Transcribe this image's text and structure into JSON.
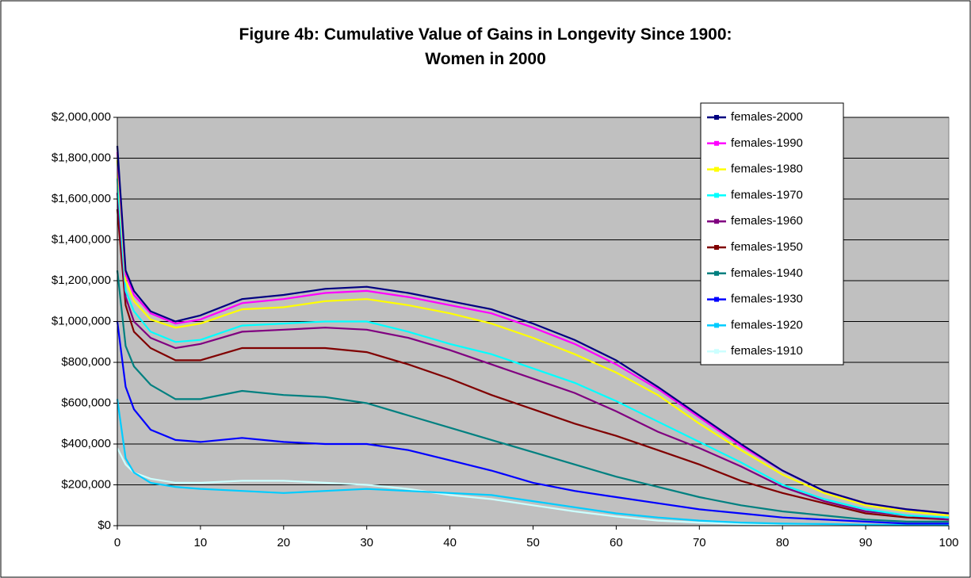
{
  "chart_data": {
    "type": "line",
    "title": "Figure 4b: Cumulative Value of Gains in Longevity Since 1900: Women in 2000",
    "x": [
      0,
      1,
      2,
      4,
      7,
      10,
      15,
      20,
      25,
      30,
      35,
      40,
      45,
      50,
      55,
      60,
      65,
      70,
      75,
      80,
      85,
      90,
      95,
      100
    ],
    "xlim": [
      0,
      100
    ],
    "xticks": [
      0,
      10,
      20,
      30,
      40,
      50,
      60,
      70,
      80,
      90,
      100
    ],
    "ylim": [
      0,
      2000000
    ],
    "yticks": [
      {
        "value": 0,
        "label": "$0"
      },
      {
        "value": 200000,
        "label": "$200,000"
      },
      {
        "value": 400000,
        "label": "$400,000"
      },
      {
        "value": 600000,
        "label": "$600,000"
      },
      {
        "value": 800000,
        "label": "$800,000"
      },
      {
        "value": 1000000,
        "label": "$1,000,000"
      },
      {
        "value": 1200000,
        "label": "$1,200,000"
      },
      {
        "value": 1400000,
        "label": "$1,400,000"
      },
      {
        "value": 1600000,
        "label": "$1,600,000"
      },
      {
        "value": 1800000,
        "label": "$1,800,000"
      },
      {
        "value": 2000000,
        "label": "$2,000,000"
      }
    ],
    "grid": true,
    "legend": "upper-right",
    "series": [
      {
        "name": "females-2000",
        "color": "#000080",
        "values": [
          1860000,
          1250000,
          1150000,
          1050000,
          1000000,
          1030000,
          1110000,
          1130000,
          1160000,
          1170000,
          1140000,
          1100000,
          1060000,
          990000,
          910000,
          810000,
          680000,
          540000,
          400000,
          270000,
          170000,
          110000,
          80000,
          60000
        ]
      },
      {
        "name": "females-1990",
        "color": "#ff00ff",
        "values": [
          1830000,
          1230000,
          1130000,
          1040000,
          990000,
          1010000,
          1090000,
          1110000,
          1140000,
          1150000,
          1120000,
          1080000,
          1040000,
          970000,
          890000,
          790000,
          670000,
          530000,
          390000,
          270000,
          170000,
          110000,
          80000,
          60000
        ]
      },
      {
        "name": "females-1980",
        "color": "#ffff00",
        "values": [
          1790000,
          1200000,
          1100000,
          1010000,
          970000,
          990000,
          1060000,
          1070000,
          1100000,
          1110000,
          1080000,
          1040000,
          990000,
          920000,
          840000,
          750000,
          640000,
          500000,
          370000,
          250000,
          160000,
          100000,
          70000,
          50000
        ]
      },
      {
        "name": "females-1970",
        "color": "#00ffff",
        "values": [
          1700000,
          1150000,
          1050000,
          950000,
          900000,
          910000,
          980000,
          990000,
          1000000,
          1000000,
          950000,
          890000,
          840000,
          770000,
          700000,
          610000,
          510000,
          410000,
          310000,
          200000,
          130000,
          80000,
          50000,
          40000
        ]
      },
      {
        "name": "females-1960",
        "color": "#800080",
        "values": [
          1630000,
          1120000,
          1000000,
          920000,
          870000,
          890000,
          950000,
          960000,
          970000,
          960000,
          920000,
          860000,
          790000,
          720000,
          650000,
          560000,
          460000,
          380000,
          290000,
          190000,
          120000,
          70000,
          50000,
          30000
        ]
      },
      {
        "name": "females-1950",
        "color": "#800000",
        "values": [
          1550000,
          1080000,
          950000,
          870000,
          810000,
          810000,
          870000,
          870000,
          870000,
          850000,
          790000,
          720000,
          640000,
          570000,
          500000,
          440000,
          370000,
          300000,
          220000,
          160000,
          110000,
          60000,
          40000,
          30000
        ]
      },
      {
        "name": "females-1940",
        "color": "#008080",
        "values": [
          1250000,
          880000,
          780000,
          690000,
          620000,
          620000,
          660000,
          640000,
          630000,
          600000,
          540000,
          480000,
          420000,
          360000,
          300000,
          240000,
          190000,
          140000,
          100000,
          70000,
          50000,
          30000,
          20000,
          20000
        ]
      },
      {
        "name": "females-1930",
        "color": "#0000ff",
        "values": [
          1000000,
          680000,
          570000,
          470000,
          420000,
          410000,
          430000,
          410000,
          400000,
          400000,
          370000,
          320000,
          270000,
          210000,
          170000,
          140000,
          110000,
          80000,
          60000,
          40000,
          30000,
          20000,
          10000,
          10000
        ]
      },
      {
        "name": "females-1920",
        "color": "#00ccff",
        "values": [
          620000,
          330000,
          260000,
          210000,
          190000,
          180000,
          170000,
          160000,
          170000,
          180000,
          170000,
          160000,
          150000,
          120000,
          90000,
          60000,
          40000,
          25000,
          15000,
          10000,
          8000,
          5000,
          3000,
          2000
        ]
      },
      {
        "name": "females-1910",
        "color": "#ccffff",
        "values": [
          380000,
          300000,
          260000,
          230000,
          210000,
          210000,
          220000,
          220000,
          210000,
          200000,
          180000,
          150000,
          130000,
          100000,
          70000,
          45000,
          25000,
          15000,
          8000,
          5000,
          3000,
          2000,
          1000,
          1000
        ]
      }
    ]
  }
}
